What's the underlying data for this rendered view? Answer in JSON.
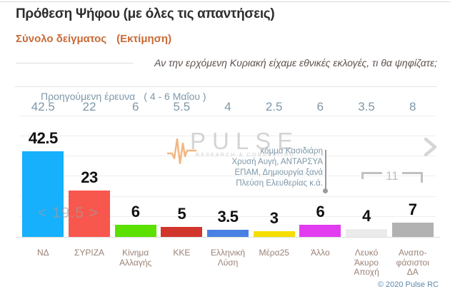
{
  "header": {
    "title": "Πρόθεση Ψήφου (με όλες τις απαντήσεις)",
    "sample": "Σύνολο δείγματος",
    "estimate": "(Εκτίμηση)",
    "question": "Αν την ερχόμενη Κυριακή είχαμε εθνικές εκλογές, τι θα ψηφίζατε;"
  },
  "previous_survey": {
    "label": "Προηγούμενη έρευνα",
    "dates": "( 4 - 6 Μαΐου )"
  },
  "chart_data": {
    "type": "bar",
    "title": "Πρόθεση Ψήφου (με όλες τις απαντήσεις)",
    "categories": [
      "ΝΔ",
      "ΣΥΡΙΖΑ",
      "Κίνημα\nΑλλαγής",
      "ΚΚΕ",
      "Ελληνική\nΛύση",
      "Μέρα25",
      "Άλλο",
      "Λευκό\nΆκυρο\nΑποχή",
      "Αναπο-\nφάσιστοι\nΔΑ"
    ],
    "series": [
      {
        "name": "Εκτίμηση",
        "values": [
          42.5,
          23,
          6,
          5,
          3.5,
          3,
          6,
          4,
          7
        ]
      },
      {
        "name": "Προηγούμενη έρευνα ( 4 - 6 Μαΐου )",
        "values": [
          42.5,
          22,
          6,
          5.5,
          4,
          2.5,
          6,
          3.5,
          8
        ]
      }
    ],
    "bar_colors": [
      "#16b0fc",
      "#f8574e",
      "#5be000",
      "#d2352b",
      "#4a80e3",
      "#f6de00",
      "#e23cf0",
      "#ebebeb",
      "#b2b2b2"
    ],
    "ylim": [
      0,
      50
    ],
    "grid": true,
    "legend_position": "none"
  },
  "annotations": {
    "lead_difference": "< 19.5 >",
    "other_parties_note": "κόμμα Κασιδιάρη\nΧρυσή Αυγή, ΑΝΤΑΡΣΥΑ\nΕΠΑΜ, Δημιουργία ξανά\nΠλεύση Ελευθερίας  κ.ά.",
    "undecided_bracket_value": "11"
  },
  "watermark": {
    "brand": "PULSE",
    "tagline": "RESEARCH & CONSULTING"
  },
  "footer": {
    "copyright": "© 2020 Pulse RC"
  },
  "colors": {
    "title": "#2e2e2e",
    "subtitle_orange": "#c96a35",
    "question": "#5c524d",
    "steel_blue_text": "#7e97a8",
    "value_label": "#111111",
    "category_label": "#9a8276",
    "watermark_gray": "#c6c6c6",
    "watermark_orange": "#f0a463",
    "annotation_gray": "#9e9e9e",
    "footer_blue": "#5b87ad"
  }
}
